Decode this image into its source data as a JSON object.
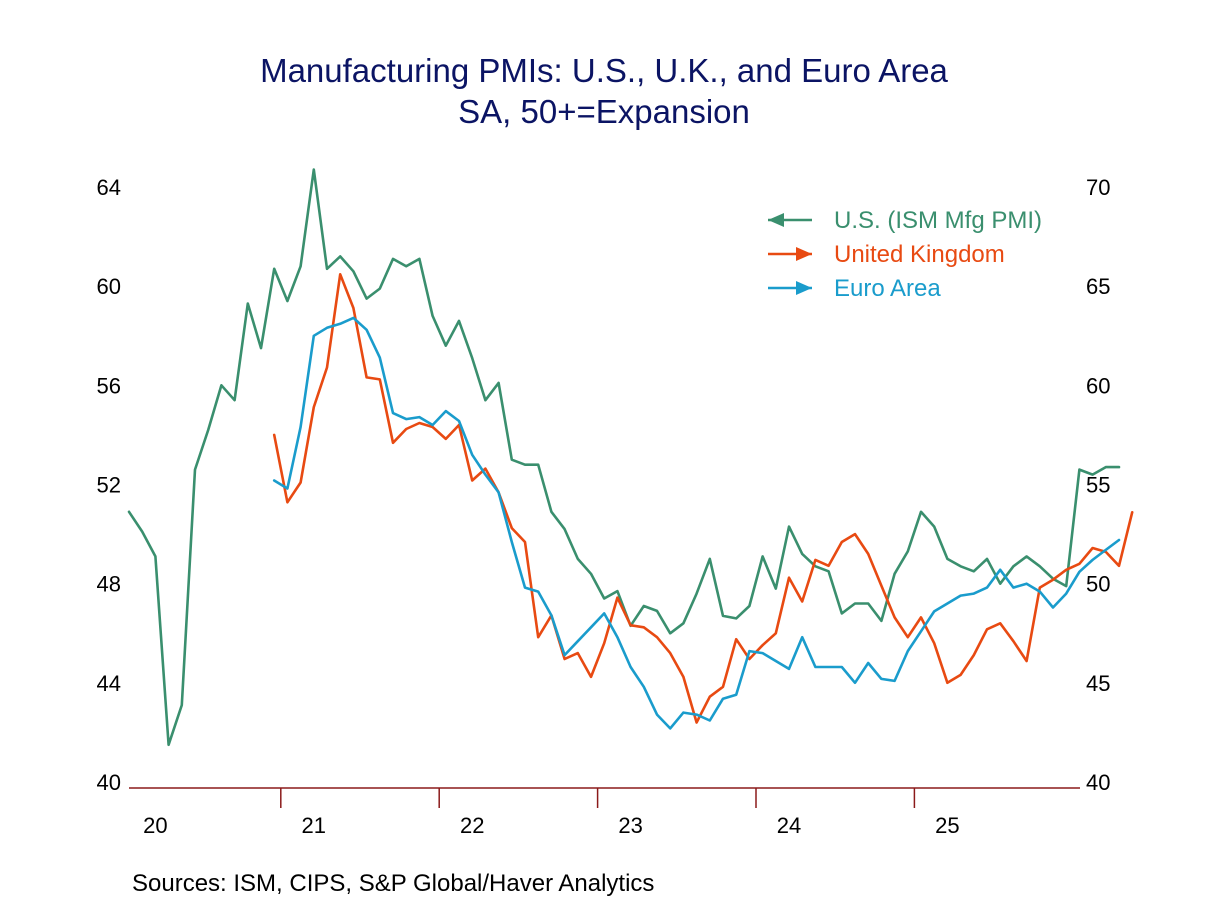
{
  "title": "Manufacturing PMIs: U.S., U.K., and Euro Area",
  "subtitle": "SA, 50+=Expansion",
  "sources": "Sources:   ISM, CIPS, S&P Global/Haver Analytics",
  "chart_data": {
    "type": "line",
    "title": "Manufacturing PMIs: U.S., U.K., and Euro Area",
    "subtitle": "SA, 50+=Expansion",
    "x_start": "2020-01",
    "x_labels": [
      "20",
      "21",
      "22",
      "23",
      "24",
      "25"
    ],
    "left_axis": {
      "ylim": [
        40,
        64
      ],
      "ticks": [
        40,
        44,
        48,
        52,
        56,
        60,
        64
      ]
    },
    "right_axis": {
      "ylim": [
        40,
        70
      ],
      "ticks": [
        40,
        45,
        50,
        55,
        60,
        65,
        70
      ]
    },
    "legend": {
      "placement": "top-right",
      "arrows": [
        "left",
        "right",
        "right"
      ]
    },
    "series": [
      {
        "name": "U.S. (ISM Mfg PMI)",
        "axis": "left",
        "color": "#3a8f6e",
        "start": "2020-01",
        "values": [
          50.9,
          50.1,
          49.1,
          41.5,
          43.1,
          52.6,
          54.2,
          56.0,
          55.4,
          59.3,
          57.5,
          60.7,
          59.4,
          60.8,
          64.7,
          60.7,
          61.2,
          60.6,
          59.5,
          59.9,
          61.1,
          60.8,
          61.1,
          58.8,
          57.6,
          58.6,
          57.1,
          55.4,
          56.1,
          53.0,
          52.8,
          52.8,
          50.9,
          50.2,
          49.0,
          48.4,
          47.4,
          47.7,
          46.3,
          47.1,
          46.9,
          46.0,
          46.4,
          47.6,
          49.0,
          46.7,
          46.6,
          47.1,
          49.1,
          47.8,
          50.3,
          49.2,
          48.7,
          48.5,
          46.8,
          47.2,
          47.2,
          46.5,
          48.4,
          49.3,
          50.9,
          50.3,
          49.0,
          48.7,
          48.5,
          49.0,
          48.0,
          48.7,
          49.1,
          48.7,
          48.2,
          47.9,
          52.6,
          52.4,
          52.7,
          52.7
        ]
      },
      {
        "name": "United Kingdom",
        "axis": "right",
        "color": "#e84a12",
        "start": "2020-12",
        "values": [
          57.5,
          54.1,
          55.1,
          58.9,
          60.9,
          65.6,
          63.9,
          60.4,
          60.3,
          57.1,
          57.8,
          58.1,
          57.9,
          57.3,
          58.0,
          55.2,
          55.8,
          54.6,
          52.8,
          52.1,
          47.3,
          48.4,
          46.2,
          46.5,
          45.3,
          47.0,
          49.3,
          47.9,
          47.8,
          47.3,
          46.5,
          45.3,
          43.0,
          44.3,
          44.8,
          47.2,
          46.2,
          46.9,
          47.5,
          50.3,
          49.1,
          51.2,
          50.9,
          52.1,
          52.5,
          51.5,
          49.9,
          48.3,
          47.3,
          48.3,
          47.0,
          45.0,
          45.4,
          46.4,
          47.7,
          48.0,
          47.1,
          46.1,
          49.8,
          50.2,
          50.7,
          51.0,
          51.8,
          51.6,
          50.9,
          53.6
        ]
      },
      {
        "name": "Euro Area",
        "axis": "right",
        "color": "#1a9ccc",
        "start": "2020-12",
        "values": [
          55.2,
          54.8,
          57.9,
          62.5,
          62.9,
          63.1,
          63.4,
          62.8,
          61.4,
          58.6,
          58.3,
          58.4,
          58.0,
          58.7,
          58.2,
          56.5,
          55.5,
          54.6,
          52.1,
          49.8,
          49.6,
          48.4,
          46.4,
          47.1,
          47.8,
          48.5,
          47.3,
          45.8,
          44.8,
          43.4,
          42.7,
          43.5,
          43.4,
          43.1,
          44.2,
          44.4,
          46.6,
          46.5,
          46.1,
          45.7,
          47.3,
          45.8,
          45.8,
          45.8,
          45.0,
          46.0,
          45.2,
          45.1,
          46.6,
          47.6,
          48.6,
          49.0,
          49.4,
          49.5,
          49.8,
          50.7,
          49.8,
          50.0,
          49.6,
          48.8,
          49.5,
          50.6,
          51.2,
          51.7,
          52.2
        ]
      }
    ]
  }
}
